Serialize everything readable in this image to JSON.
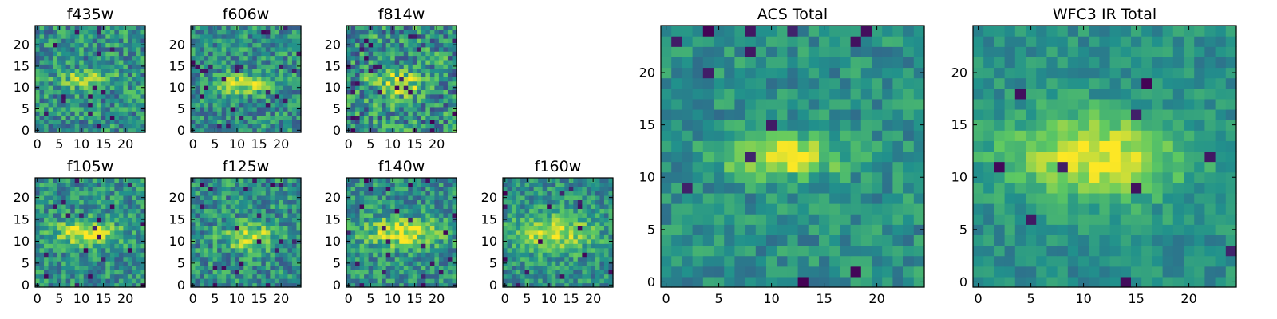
{
  "figure": {
    "colormap": "viridis",
    "colormap_stops": [
      "#440154",
      "#3b528b",
      "#21918c",
      "#5ec962",
      "#fde725"
    ],
    "frame_color": "#000000",
    "background": "#ffffff"
  },
  "chart_data": [
    {
      "type": "heatmap",
      "title": "f435w",
      "xlim": [
        -0.5,
        24.5
      ],
      "ylim": [
        -0.5,
        24.5
      ],
      "xticks": [
        0,
        5,
        10,
        15,
        20
      ],
      "yticks": [
        0,
        5,
        10,
        15,
        20
      ],
      "grid": false,
      "size": [
        25,
        25
      ],
      "source_center": [
        11,
        12
      ],
      "source_halfwidth": [
        4,
        1.4
      ],
      "peak": 0.7,
      "noise": 0.25,
      "dark_pixel_rate": 0.03,
      "seed": 11
    },
    {
      "type": "heatmap",
      "title": "f606w",
      "xlim": [
        -0.5,
        24.5
      ],
      "ylim": [
        -0.5,
        24.5
      ],
      "xticks": [
        0,
        5,
        10,
        15,
        20
      ],
      "yticks": [
        0,
        5,
        10,
        15,
        20
      ],
      "grid": false,
      "size": [
        25,
        25
      ],
      "source_center": [
        11,
        11
      ],
      "source_halfwidth": [
        4,
        1.5
      ],
      "peak": 0.9,
      "noise": 0.24,
      "dark_pixel_rate": 0.03,
      "seed": 23
    },
    {
      "type": "heatmap",
      "title": "f814w",
      "xlim": [
        -0.5,
        24.5
      ],
      "ylim": [
        -0.5,
        24.5
      ],
      "xticks": [
        0,
        5,
        10,
        15,
        20
      ],
      "yticks": [
        0,
        5,
        10,
        15,
        20
      ],
      "grid": false,
      "size": [
        25,
        25
      ],
      "source_center": [
        11,
        11
      ],
      "source_halfwidth": [
        4,
        2.0
      ],
      "peak": 0.8,
      "noise": 0.3,
      "dark_pixel_rate": 0.05,
      "seed": 37
    },
    {
      "type": "heatmap",
      "title": "f105w",
      "xlim": [
        -0.5,
        24.5
      ],
      "ylim": [
        -0.5,
        24.5
      ],
      "xticks": [
        0,
        5,
        10,
        15,
        20
      ],
      "yticks": [
        0,
        5,
        10,
        15,
        20
      ],
      "grid": false,
      "size": [
        25,
        25
      ],
      "source_center": [
        11,
        12
      ],
      "source_halfwidth": [
        5,
        2.0
      ],
      "peak": 0.9,
      "noise": 0.22,
      "dark_pixel_rate": 0.03,
      "seed": 41
    },
    {
      "type": "heatmap",
      "title": "f125w",
      "xlim": [
        -0.5,
        24.5
      ],
      "ylim": [
        -0.5,
        24.5
      ],
      "xticks": [
        0,
        5,
        10,
        15,
        20
      ],
      "yticks": [
        0,
        5,
        10,
        15,
        20
      ],
      "grid": false,
      "size": [
        25,
        25
      ],
      "source_center": [
        13,
        11
      ],
      "source_halfwidth": [
        4,
        2.0
      ],
      "peak": 0.85,
      "noise": 0.24,
      "dark_pixel_rate": 0.04,
      "seed": 53
    },
    {
      "type": "heatmap",
      "title": "f140w",
      "xlim": [
        -0.5,
        24.5
      ],
      "ylim": [
        -0.5,
        24.5
      ],
      "xticks": [
        0,
        5,
        10,
        15,
        20
      ],
      "yticks": [
        0,
        5,
        10,
        15,
        20
      ],
      "grid": false,
      "size": [
        25,
        25
      ],
      "source_center": [
        12,
        12
      ],
      "source_halfwidth": [
        6,
        2.5
      ],
      "peak": 0.85,
      "noise": 0.22,
      "dark_pixel_rate": 0.03,
      "seed": 67
    },
    {
      "type": "heatmap",
      "title": "f160w",
      "xlim": [
        -0.5,
        24.5
      ],
      "ylim": [
        -0.5,
        24.5
      ],
      "xticks": [
        0,
        5,
        10,
        15,
        20
      ],
      "yticks": [
        0,
        5,
        10,
        15,
        20
      ],
      "grid": false,
      "size": [
        25,
        25
      ],
      "source_center": [
        11,
        12
      ],
      "source_halfwidth": [
        6,
        3.0
      ],
      "peak": 0.85,
      "noise": 0.2,
      "dark_pixel_rate": 0.03,
      "seed": 79
    },
    {
      "type": "heatmap",
      "title": "ACS Total",
      "xlim": [
        -0.5,
        24.5
      ],
      "ylim": [
        -0.5,
        24.5
      ],
      "xticks": [
        0,
        5,
        10,
        15,
        20
      ],
      "yticks": [
        0,
        5,
        10,
        15,
        20
      ],
      "grid": false,
      "size": [
        25,
        25
      ],
      "source_center": [
        11,
        12
      ],
      "source_halfwidth": [
        4,
        1.3
      ],
      "peak": 1.0,
      "noise": 0.15,
      "dark_pixel_rate": 0.03,
      "seed": 97
    },
    {
      "type": "heatmap",
      "title": "WFC3 IR Total",
      "xlim": [
        -0.5,
        24.5
      ],
      "ylim": [
        -0.5,
        24.5
      ],
      "xticks": [
        0,
        5,
        10,
        15,
        20
      ],
      "yticks": [
        0,
        5,
        10,
        15,
        20
      ],
      "grid": false,
      "size": [
        25,
        25
      ],
      "source_center": [
        11,
        12
      ],
      "source_halfwidth": [
        6,
        2.8
      ],
      "peak": 0.95,
      "noise": 0.12,
      "dark_pixel_rate": 0.02,
      "seed": 131
    }
  ]
}
